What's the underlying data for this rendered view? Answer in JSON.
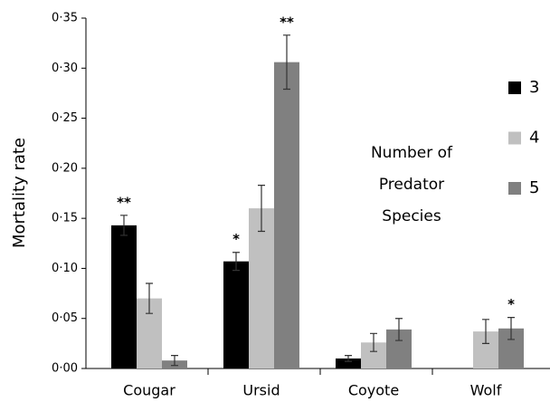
{
  "chart_data": {
    "type": "bar",
    "y_label": "Mortality rate",
    "categories": [
      "Cougar",
      "Ursid",
      "Coyote",
      "Wolf"
    ],
    "legend_title": [
      "Number of",
      "Predator",
      "Species"
    ],
    "series": [
      {
        "name": "3",
        "color": "#000000",
        "values": [
          0.143,
          0.107,
          0.01,
          null
        ],
        "errors": [
          0.01,
          0.009,
          0.003,
          null
        ],
        "significance": [
          "**",
          "*",
          null,
          null
        ]
      },
      {
        "name": "4",
        "color": "#c0c0c0",
        "values": [
          0.07,
          0.16,
          0.026,
          0.037
        ],
        "errors": [
          0.015,
          0.023,
          0.009,
          0.012
        ],
        "significance": [
          null,
          null,
          null,
          null
        ]
      },
      {
        "name": "5",
        "color": "#808080",
        "values": [
          0.008,
          0.306,
          0.039,
          0.04
        ],
        "errors": [
          0.005,
          0.027,
          0.011,
          0.011
        ],
        "significance": [
          null,
          "**",
          null,
          "*"
        ]
      }
    ],
    "ylim": [
      0,
      0.35
    ],
    "yticks": [
      {
        "value": 0,
        "label": "0·00"
      },
      {
        "value": 0.05,
        "label": "0·05"
      },
      {
        "value": 0.1,
        "label": "0·10"
      },
      {
        "value": 0.15,
        "label": "0·15"
      },
      {
        "value": 0.2,
        "label": "0·20"
      },
      {
        "value": 0.25,
        "label": "0·25"
      },
      {
        "value": 0.3,
        "label": "0·30"
      },
      {
        "value": 0.35,
        "label": "0·35"
      }
    ]
  }
}
